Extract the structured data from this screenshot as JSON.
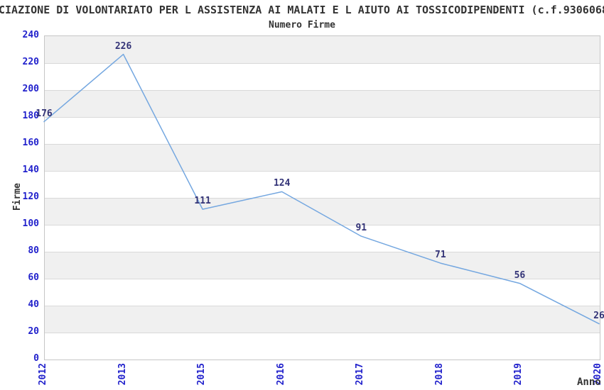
{
  "chart_data": {
    "type": "line",
    "title_visible": "CIAZIONE DI VOLONTARIATO PER L ASSISTENZA AI MALATI E L AIUTO AI TOSSICODIPENDENTI (c.f.9306068",
    "subtitle": "Numero Firme",
    "xlabel": "Anno",
    "ylabel": "Firme",
    "categories": [
      "2012",
      "2013",
      "2015",
      "2016",
      "2017",
      "2018",
      "2019",
      "2020"
    ],
    "values": [
      176,
      226,
      111,
      124,
      91,
      71,
      56,
      26
    ],
    "ylim": [
      0,
      240
    ],
    "ytick_step": 20,
    "grid": true,
    "legend": "none",
    "layout_hints": {
      "x_tick_rotation": 90,
      "alternating_bands": true,
      "data_labels_shown": true
    },
    "colors": {
      "line": "#74a7e0",
      "tick_label": "#2222cc",
      "data_label": "#333377",
      "text": "#333333",
      "band": "#f0f0f0",
      "gridline": "#d9d9d9",
      "plot_border": "#c6c6c6",
      "background": "#ffffff"
    }
  }
}
